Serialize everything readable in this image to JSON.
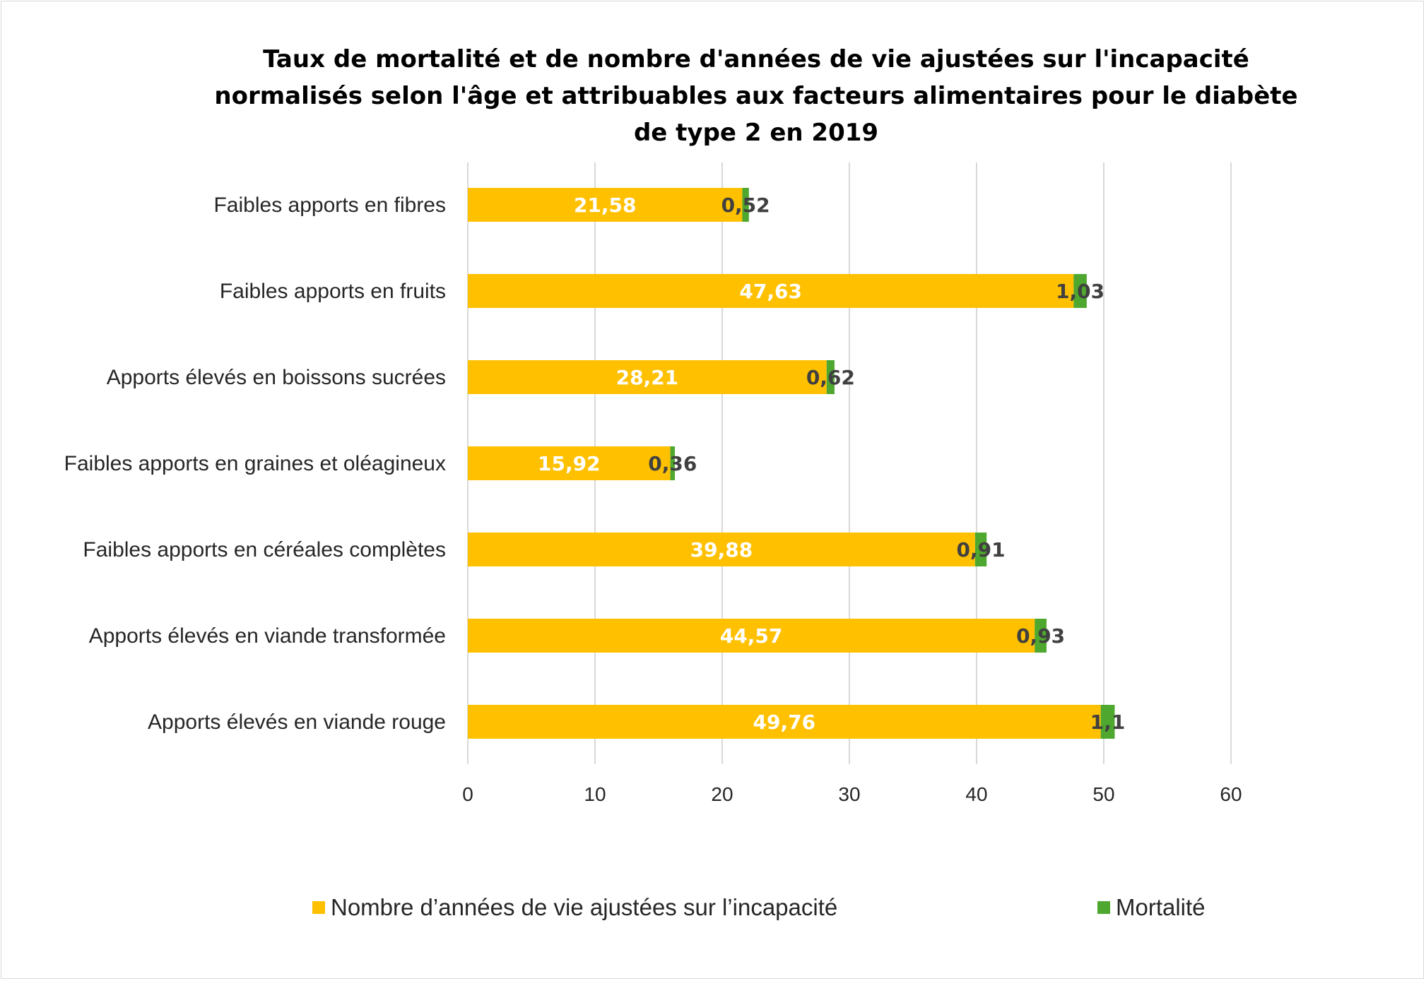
{
  "chart_data": {
    "type": "bar",
    "orientation": "horizontal",
    "stacked": true,
    "title": "Taux de mortalité et de nombre d'années de vie ajustées sur l'incapacité\nnormalisés selon l'âge et attribuables aux facteurs alimentaires pour le diabète\nde type 2 en 2019",
    "categories": [
      "Faibles apports en fibres",
      "Faibles apports en fruits",
      "Apports élevés en boissons sucrées",
      "Faibles apports en graines et oléagineux",
      "Faibles apports en céréales complètes",
      "Apports élevés en viande transformée",
      "Apports élevés en viande rouge"
    ],
    "series": [
      {
        "name": "Nombre d’années de vie ajustées sur l’incapacité",
        "color": "#FFC000",
        "values": [
          21.58,
          47.63,
          28.21,
          15.92,
          39.88,
          44.57,
          49.76
        ],
        "labels": [
          "21,58",
          "47,63",
          "28,21",
          "15,92",
          "39,88",
          "44,57",
          "49,76"
        ]
      },
      {
        "name": "Mortalité",
        "color": "#4EA72E",
        "values": [
          0.52,
          1.03,
          0.62,
          0.36,
          0.91,
          0.93,
          1.1
        ],
        "labels": [
          "0,52",
          "1,03",
          "0,62",
          "0,36",
          "0,91",
          "0,93",
          "1,1"
        ]
      }
    ],
    "xlim": [
      0,
      60
    ],
    "xticks": [
      "0",
      "10",
      "20",
      "30",
      "40",
      "50",
      "60"
    ],
    "xlabel": "",
    "ylabel": "",
    "grid": true,
    "legend_position": "bottom"
  }
}
